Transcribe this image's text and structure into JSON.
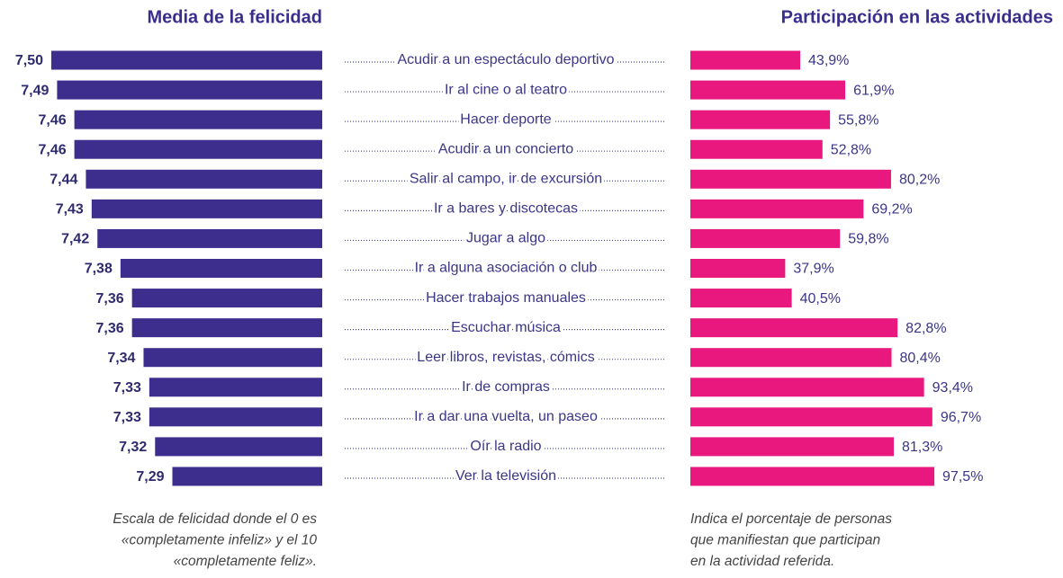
{
  "chart_data": [
    {
      "type": "bar",
      "title": "Media de la felicidad",
      "categories": [
        "Acudir a un espectáculo deportivo",
        "Ir al cine o al teatro",
        "Hacer deporte",
        "Acudir a un concierto",
        "Salir al campo, ir de excursión",
        "Ir a bares y discotecas",
        "Jugar a algo",
        "Ir a alguna asociación o club",
        "Hacer trabajos manuales",
        "Escuchar música",
        "Leer libros, revistas, cómics",
        "Ir de compras",
        "Ir a dar una vuelta, un paseo",
        "Oír la radio",
        "Ver la televisión"
      ],
      "values": [
        7.5,
        7.49,
        7.46,
        7.46,
        7.44,
        7.43,
        7.42,
        7.38,
        7.36,
        7.36,
        7.34,
        7.33,
        7.33,
        7.32,
        7.29
      ],
      "value_labels": [
        "7,50",
        "7,49",
        "7,46",
        "7,46",
        "7,44",
        "7,43",
        "7,42",
        "7,38",
        "7,36",
        "7,36",
        "7,34",
        "7,33",
        "7,33",
        "7,32",
        "7,29"
      ],
      "xlim": [
        7.03,
        7.5
      ],
      "color": "#3d2e8e",
      "note": [
        "Escala de felicidad donde el 0 es",
        "«completamente infeliz» y el 10",
        "«completamente feliz»."
      ]
    },
    {
      "type": "bar",
      "title": "Participación en las actividades",
      "values": [
        43.9,
        61.9,
        55.8,
        52.8,
        80.2,
        69.2,
        59.8,
        37.9,
        40.5,
        82.8,
        80.4,
        93.4,
        96.7,
        81.3,
        97.5
      ],
      "value_labels": [
        "43,9%",
        "61,9%",
        "55,8%",
        "52,8%",
        "80,2%",
        "69,2%",
        "59,8%",
        "37,9%",
        "40,5%",
        "82,8%",
        "80,4%",
        "93,4%",
        "96,7%",
        "81,3%",
        "97,5%"
      ],
      "xlim": [
        0,
        100
      ],
      "color": "#e8187f",
      "note": [
        "Indica el porcentaje de personas",
        "que manifiestan que participan",
        "en la actividad referida."
      ]
    }
  ]
}
